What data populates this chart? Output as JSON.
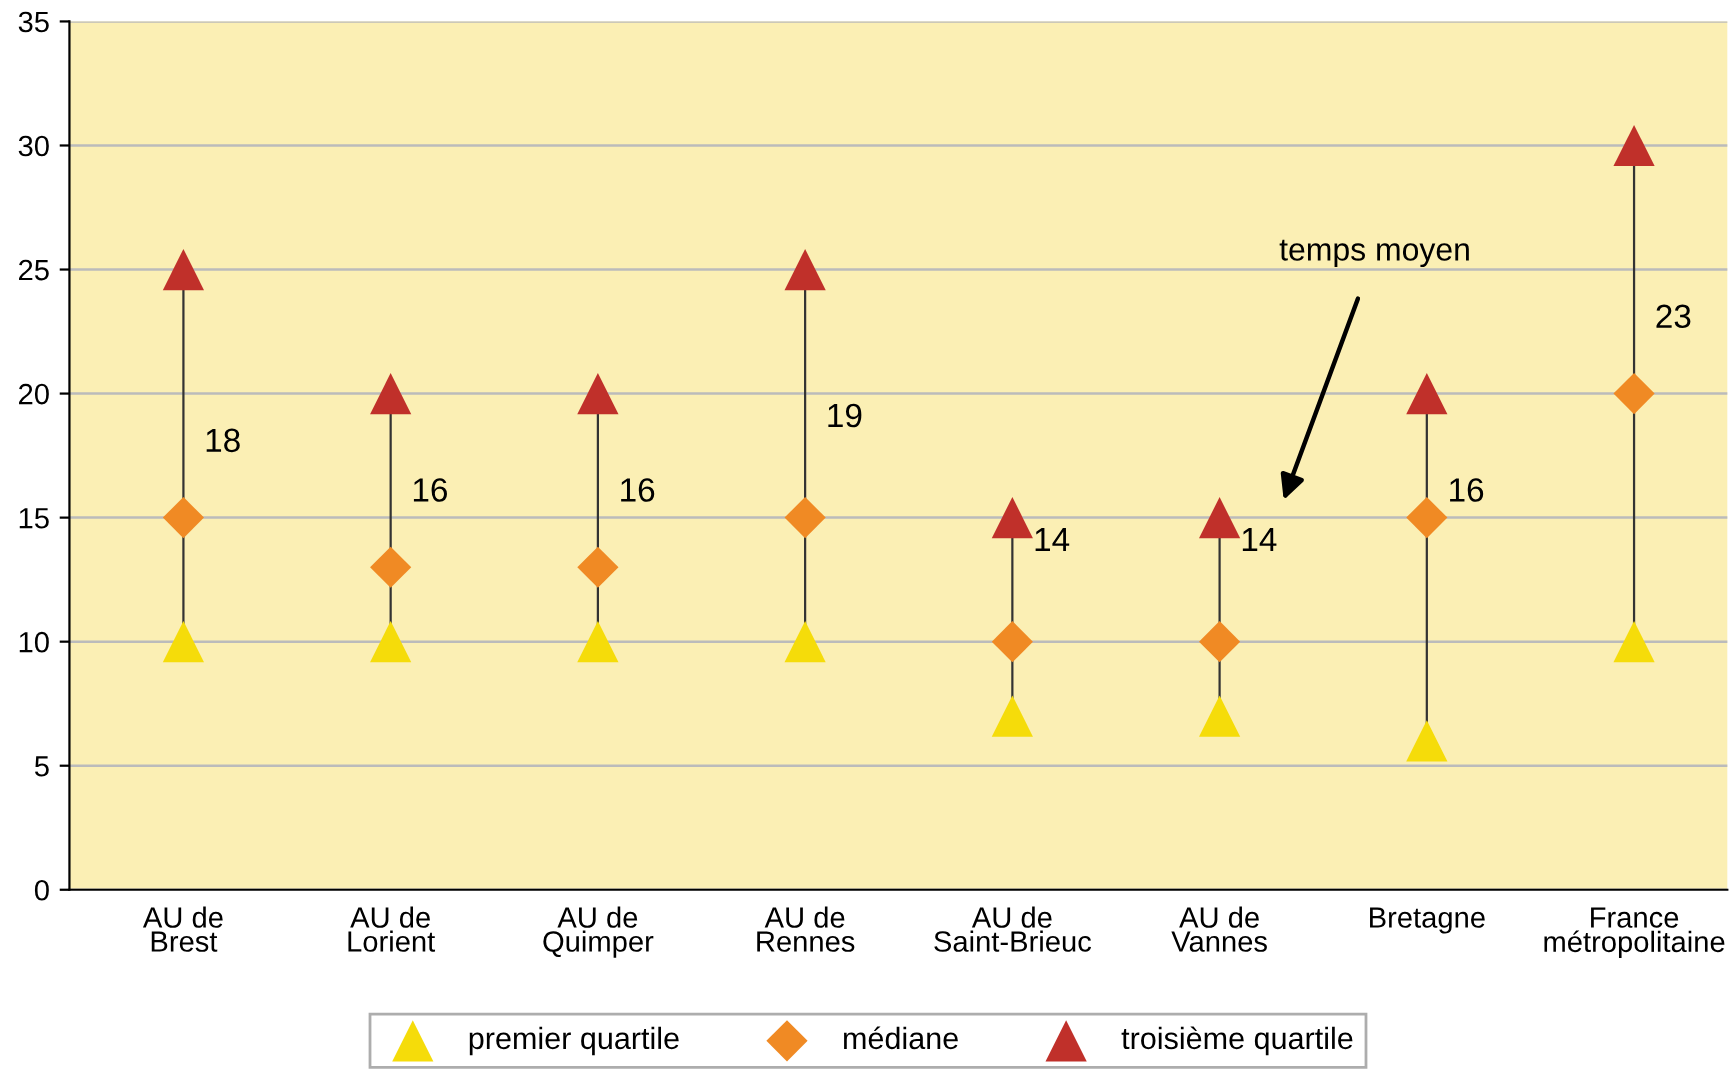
{
  "chart_data": {
    "type": "scatter",
    "categories": [
      "AU de\nBrest",
      "AU de\nLorient",
      "AU de\nQuimper",
      "AU de\nRennes",
      "AU de\nSaint-Brieuc",
      "AU de\nVannes",
      "Bretagne",
      "France\nmétropolitaine"
    ],
    "series": [
      {
        "name": "premier quartile",
        "color": "#f5dc0a",
        "marker": "triangle",
        "values": [
          10,
          10,
          10,
          10,
          7,
          7,
          6,
          10
        ]
      },
      {
        "name": "médiane",
        "color": "#f08a24",
        "marker": "diamond",
        "values": [
          15,
          13,
          13,
          15,
          10,
          10,
          15,
          20
        ]
      },
      {
        "name": "troisième quartile",
        "color": "#c0302a",
        "marker": "triangle",
        "values": [
          25,
          20,
          20,
          25,
          15,
          15,
          20,
          30
        ]
      }
    ],
    "annotations": [
      "18",
      "16",
      "16",
      "19",
      "14",
      "14",
      "16",
      "23",
      "temps moyen"
    ],
    "ylim": [
      0,
      35
    ],
    "yticks": [
      0,
      5,
      10,
      15,
      20,
      25,
      30,
      35
    ],
    "grid": "y",
    "legend": "bottom"
  }
}
